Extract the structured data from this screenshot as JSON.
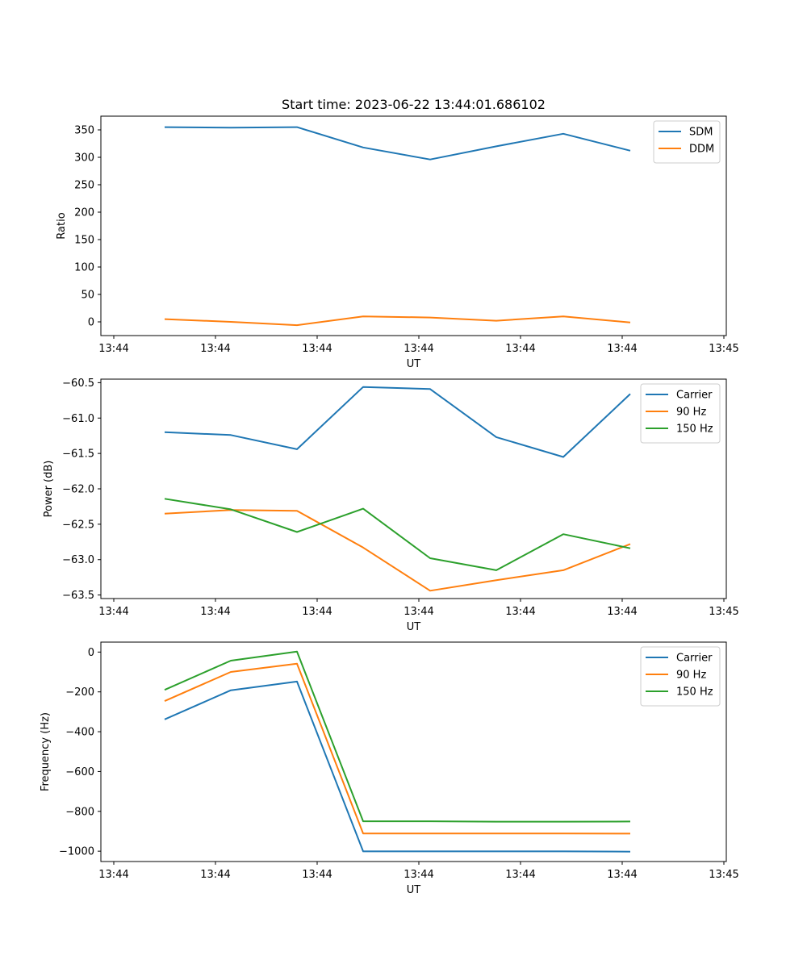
{
  "chart_data": [
    {
      "type": "line",
      "title": "Start time: 2023-06-22 13:44:01.686102",
      "xlabel": "UT",
      "ylabel": "Ratio",
      "x_tick_labels": [
        "13:44",
        "13:44",
        "13:44",
        "13:44",
        "13:44",
        "13:44",
        "13:45"
      ],
      "y_ticks": [
        0,
        50,
        100,
        150,
        200,
        250,
        300,
        350
      ],
      "y_tick_labels": [
        "0",
        "50",
        "100",
        "150",
        "200",
        "250",
        "300",
        "350"
      ],
      "ylim": [
        -25,
        375
      ],
      "grid": false,
      "legend": "top-right",
      "series": [
        {
          "name": "SDM",
          "color": "#1f77b4",
          "values": [
            355,
            354,
            355,
            318,
            296,
            320,
            343,
            312
          ]
        },
        {
          "name": "DDM",
          "color": "#ff7f0e",
          "values": [
            5,
            0,
            -6,
            10,
            8,
            2,
            10,
            -1
          ]
        }
      ]
    },
    {
      "type": "line",
      "title": "",
      "xlabel": "UT",
      "ylabel": "Power (dB)",
      "x_tick_labels": [
        "13:44",
        "13:44",
        "13:44",
        "13:44",
        "13:44",
        "13:44",
        "13:45"
      ],
      "y_ticks": [
        -60.5,
        -61.0,
        -61.5,
        -62.0,
        -62.5,
        -63.0,
        -63.5
      ],
      "y_tick_labels": [
        "−60.5",
        "−61.0",
        "−61.5",
        "−62.0",
        "−62.5",
        "−63.0",
        "−63.5"
      ],
      "ylim": [
        -63.55,
        -60.45
      ],
      "grid": false,
      "legend": "top-right",
      "series": [
        {
          "name": "Carrier",
          "color": "#1f77b4",
          "values": [
            -61.2,
            -61.24,
            -61.44,
            -60.56,
            -60.59,
            -61.27,
            -61.55,
            -60.66
          ]
        },
        {
          "name": "90 Hz",
          "color": "#ff7f0e",
          "values": [
            -62.35,
            -62.3,
            -62.31,
            -62.83,
            -63.44,
            -63.29,
            -63.15,
            -62.78
          ]
        },
        {
          "name": "150 Hz",
          "color": "#2ca02c",
          "values": [
            -62.14,
            -62.29,
            -62.61,
            -62.28,
            -62.98,
            -63.15,
            -62.64,
            -62.84
          ]
        }
      ]
    },
    {
      "type": "line",
      "title": "",
      "xlabel": "UT",
      "ylabel": "Frequency (Hz)",
      "x_tick_labels": [
        "13:44",
        "13:44",
        "13:44",
        "13:44",
        "13:44",
        "13:44",
        "13:45"
      ],
      "y_ticks": [
        0,
        -200,
        -400,
        -600,
        -800,
        -1000
      ],
      "y_tick_labels": [
        "0",
        "−200",
        "−400",
        "−600",
        "−800",
        "−1000"
      ],
      "ylim": [
        -1052,
        50
      ],
      "grid": false,
      "legend": "top-right",
      "series": [
        {
          "name": "Carrier",
          "color": "#1f77b4",
          "values": [
            -338,
            -192,
            -148,
            -1001,
            -1001,
            -1001,
            -1001,
            -1002
          ]
        },
        {
          "name": "90 Hz",
          "color": "#ff7f0e",
          "values": [
            -246,
            -100,
            -58,
            -911,
            -911,
            -911,
            -911,
            -912
          ]
        },
        {
          "name": "150 Hz",
          "color": "#2ca02c",
          "values": [
            -190,
            -43,
            2,
            -850,
            -850,
            -852,
            -852,
            -851
          ]
        }
      ]
    }
  ]
}
